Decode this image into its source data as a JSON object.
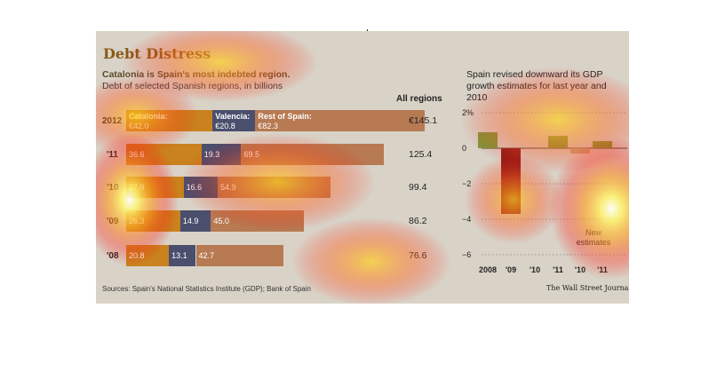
{
  "header": {
    "title": "Debt Distress",
    "subtitle_line1": "Catalonia is Spain's most indebted region.",
    "subtitle_line2": "Debt of selected Spanish regions, in billions",
    "all_regions_label": "All regions"
  },
  "right_panel": {
    "title": "Spain revised downward its GDP growth estimates for last year and 2010",
    "new_estimates": "New estimates"
  },
  "footer": {
    "sources": "Sources: Spain's National Statistics Institute (GDP); Bank of Spain",
    "publisher": "The Wall Street Journal"
  },
  "colors": {
    "catalonia": "#c9821e",
    "valencia": "#4a4f6e",
    "rest": "#b77a52",
    "gdp_positive": "#7d9a3a",
    "gdp_negative": "#8e1f1a",
    "gdp_estimate_negative": "#c7a27a"
  },
  "chart_data": [
    {
      "type": "bar",
      "stacked": true,
      "orientation": "horizontal",
      "categories": [
        "2012",
        "'11",
        "'10",
        "'09",
        "'08"
      ],
      "series": [
        {
          "name": "Catalonia:",
          "values": [
            42.0,
            36.6,
            27.9,
            26.3,
            20.8
          ],
          "labels": [
            "€42.0",
            "36.6",
            "27.9",
            "26.3",
            "20.8"
          ]
        },
        {
          "name": "Valencia:",
          "values": [
            20.8,
            19.3,
            16.6,
            14.9,
            13.1
          ],
          "labels": [
            "€20.8",
            "19.3",
            "16.6",
            "14.9",
            "13.1"
          ]
        },
        {
          "name": "Rest of Spain:",
          "values": [
            82.3,
            69.5,
            54.9,
            45.0,
            42.7
          ],
          "labels": [
            "€82.3",
            "69.5",
            "54.9",
            "45.0",
            "42.7"
          ]
        }
      ],
      "totals": [
        "€145.1",
        "125.4",
        "99.4",
        "86.2",
        "76.6"
      ],
      "xlim": [
        0,
        160
      ]
    },
    {
      "type": "bar",
      "categories": [
        "2008",
        "'09",
        "'10",
        "'11",
        "'10",
        "'11"
      ],
      "values": [
        0.9,
        -3.7,
        0,
        0.7,
        -0.3,
        0.4
      ],
      "ylim": [
        -6,
        2
      ],
      "yticks": [
        2,
        0,
        -2,
        -4,
        -6
      ],
      "ytick_labels": [
        "2%",
        "0",
        "−2",
        "−4",
        "−6"
      ],
      "new_estimate_indices": [
        4,
        5
      ]
    }
  ]
}
